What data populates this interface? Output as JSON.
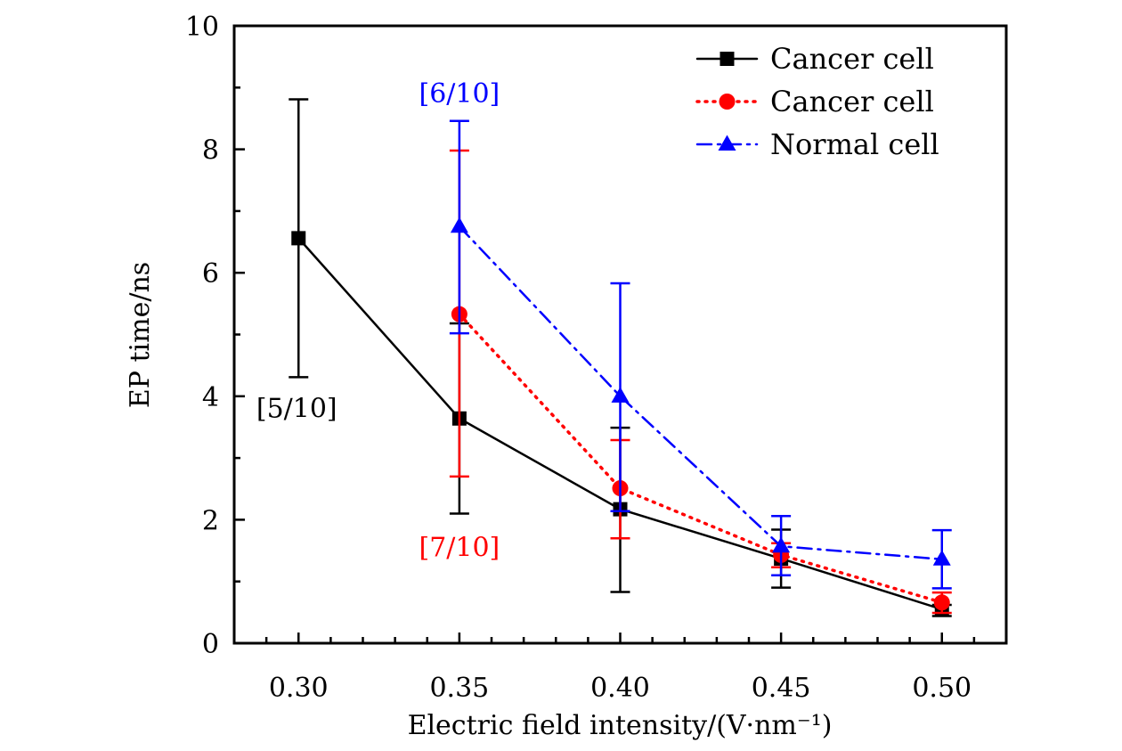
{
  "chart_data": {
    "type": "line",
    "title": "",
    "xlabel": "Electric field intensity/(V·nm⁻¹)",
    "ylabel": "EP time/ns",
    "xlim": [
      0.28,
      0.52
    ],
    "ylim": [
      0,
      10
    ],
    "x_major_ticks": [
      0.3,
      0.35,
      0.4,
      0.45,
      0.5
    ],
    "x_tick_labels": [
      "0.30",
      "0.35",
      "0.40",
      "0.45",
      "0.50"
    ],
    "x_minor_step": 0.01,
    "y_major_ticks": [
      0,
      2,
      4,
      6,
      8,
      10
    ],
    "y_tick_labels": [
      "0",
      "2",
      "4",
      "6",
      "8",
      "10"
    ],
    "y_minor_step": 1,
    "grid": false,
    "legend_position": "top-right",
    "series": [
      {
        "name": "Cancer cell",
        "color": "#000000",
        "line_style": "solid",
        "marker": "square",
        "x": [
          0.3,
          0.35,
          0.4,
          0.45,
          0.5
        ],
        "y": [
          6.56,
          3.64,
          2.17,
          1.37,
          0.55
        ],
        "err_upper": [
          8.81,
          5.18,
          3.49,
          1.84,
          0.62
        ],
        "err_lower": [
          4.31,
          2.1,
          0.83,
          0.9,
          0.44
        ]
      },
      {
        "name": "Cancer cell",
        "color": "#ff0000",
        "line_style": "dotted",
        "marker": "circle",
        "x": [
          0.35,
          0.4,
          0.45,
          0.5
        ],
        "y": [
          5.33,
          2.51,
          1.43,
          0.66
        ],
        "err_upper": [
          7.98,
          3.29,
          1.62,
          0.82
        ],
        "err_lower": [
          2.7,
          1.7,
          1.23,
          0.49
        ]
      },
      {
        "name": "Normal cell",
        "color": "#0000ff",
        "line_style": "dash-dot",
        "marker": "triangle",
        "x": [
          0.35,
          0.4,
          0.45,
          0.5
        ],
        "y": [
          6.75,
          4.0,
          1.57,
          1.36
        ],
        "err_upper": [
          8.46,
          5.83,
          2.06,
          1.83
        ],
        "err_lower": [
          5.02,
          2.14,
          1.1,
          0.89
        ]
      }
    ],
    "annotations": [
      {
        "text": "[5/10]",
        "x": 0.3,
        "y": 3.8,
        "color": "#000000"
      },
      {
        "text": "[6/10]",
        "x": 0.35,
        "y": 8.9,
        "color": "#0000ff"
      },
      {
        "text": "[7/10]",
        "x": 0.35,
        "y": 1.55,
        "color": "#ff0000"
      }
    ]
  }
}
